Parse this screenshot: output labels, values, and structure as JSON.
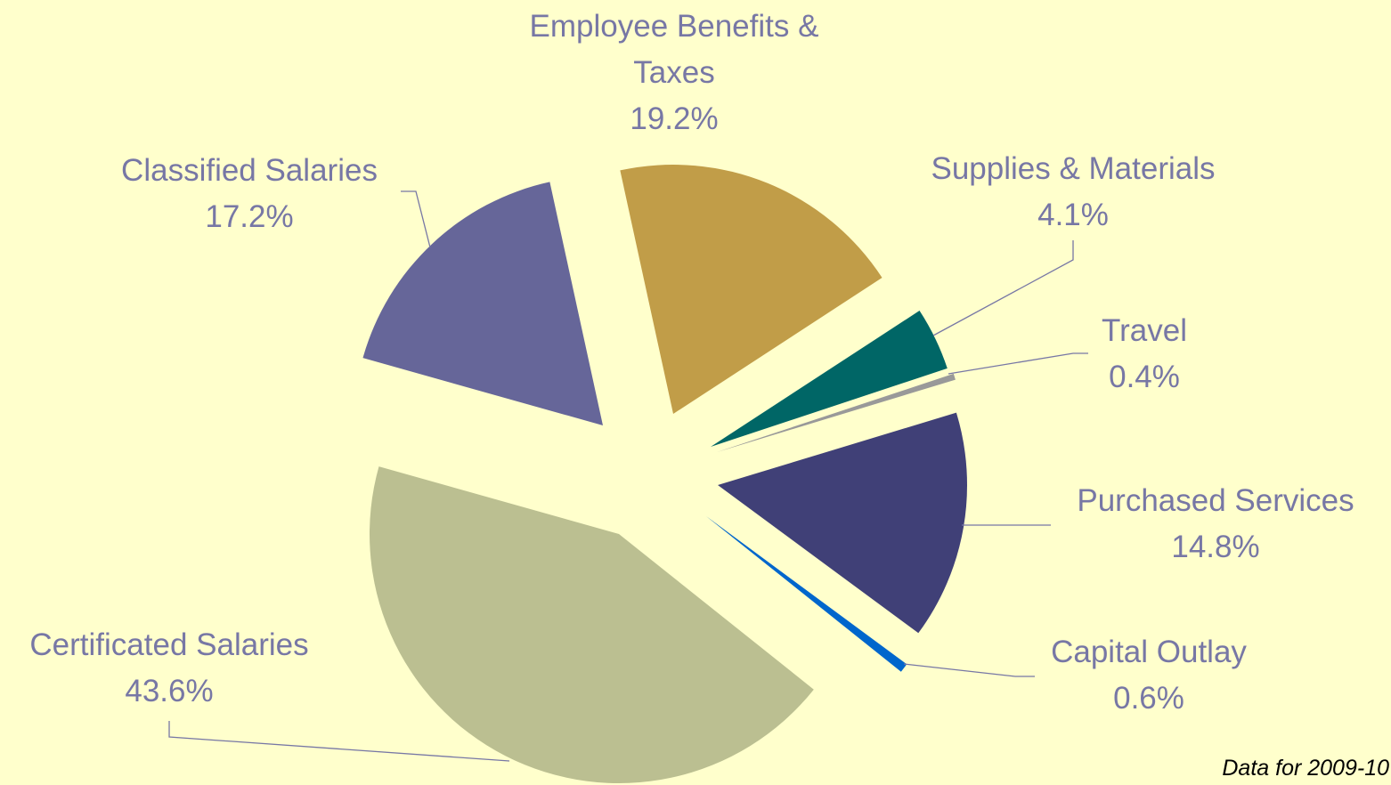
{
  "chart_data": {
    "type": "pie",
    "categories": [
      "Employee Benefits & Taxes",
      "Supplies & Materials",
      "Travel",
      "Purchased Services",
      "Capital Outlay",
      "Certificated Salaries",
      "Classified Salaries"
    ],
    "values": [
      19.2,
      4.1,
      0.4,
      14.8,
      0.6,
      43.6,
      17.2
    ],
    "value_labels": [
      "19.2%",
      "4.1%",
      "0.4%",
      "14.8%",
      "0.6%",
      "43.6%",
      "17.2%"
    ],
    "colors": [
      "#c19d48",
      "#006666",
      "#999999",
      "#404077",
      "#0066cc",
      "#bbbf91",
      "#666699"
    ],
    "note": "Data for 2009-10"
  }
}
